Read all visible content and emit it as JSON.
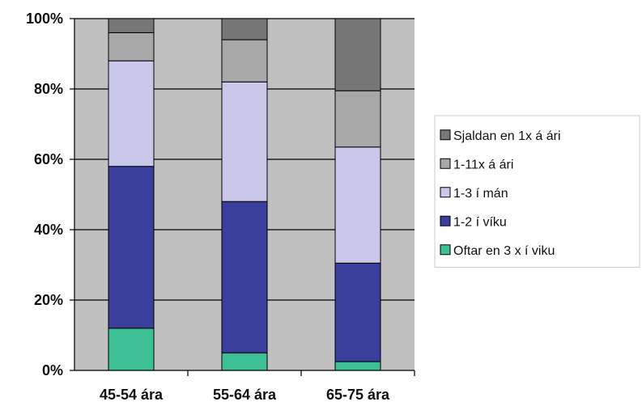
{
  "chart_data": {
    "type": "bar",
    "stacked": true,
    "categories": [
      "45-54 ára",
      "55-64 ára",
      "65-75 ára"
    ],
    "series": [
      {
        "name": "Oftar en 3 x í viku",
        "color": "#3cbf94",
        "values": [
          12,
          5,
          2.5
        ]
      },
      {
        "name": "1-2 í víku",
        "color": "#3a3f9e",
        "values": [
          46,
          43,
          28
        ]
      },
      {
        "name": "1-3 í mán",
        "color": "#c9c8ea",
        "values": [
          30,
          34,
          33
        ]
      },
      {
        "name": "1-11x á ári",
        "color": "#a8a8a8",
        "values": [
          8,
          12,
          16
        ]
      },
      {
        "name": "Sjaldan en 1x á ári",
        "color": "#777777",
        "values": [
          4,
          6,
          20.5
        ]
      }
    ],
    "y_ticks": [
      "0%",
      "20%",
      "40%",
      "60%",
      "80%",
      "100%"
    ],
    "ylim": [
      0,
      100
    ],
    "title": "",
    "xlabel": "",
    "ylabel": "",
    "grid": true,
    "plot_background": "#c0c0c0",
    "legend_position": "right"
  }
}
